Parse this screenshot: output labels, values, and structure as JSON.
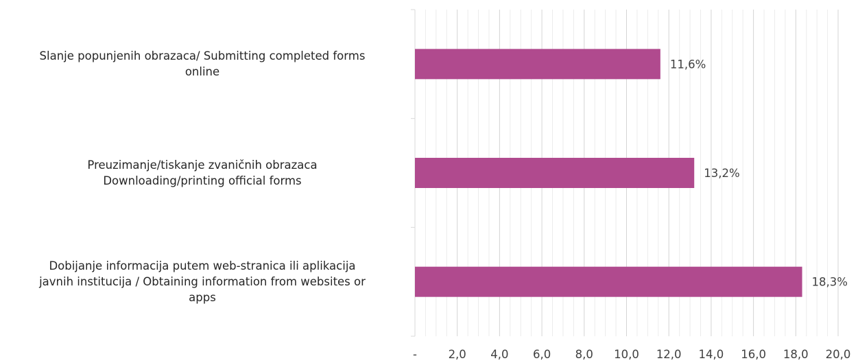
{
  "chart_data": {
    "type": "bar",
    "orientation": "horizontal",
    "categories": [
      [
        "Slanje popunjenih obrazaca/ Submitting completed forms",
        "online"
      ],
      [
        "Preuzimanje/tiskanje zvaničnih obrazaca",
        "Downloading/printing official forms"
      ],
      [
        "Dobijanje informacija putem web-stranica ili aplikacija",
        "javnih institucija / Obtaining information from websites or",
        "apps"
      ]
    ],
    "values": [
      11.6,
      13.2,
      18.3
    ],
    "data_labels": [
      "11,6%",
      "13,2%",
      "18,3%"
    ],
    "xlim": [
      0,
      20
    ],
    "x_ticks": [
      "-",
      "2,0",
      "4,0",
      "6,0",
      "8,0",
      "10,0",
      "12,0",
      "14,0",
      "16,0",
      "18,0",
      "20,0"
    ],
    "minor_gridlines": true,
    "bar_color": "#B04A8E",
    "title": "",
    "xlabel": "",
    "ylabel": ""
  }
}
